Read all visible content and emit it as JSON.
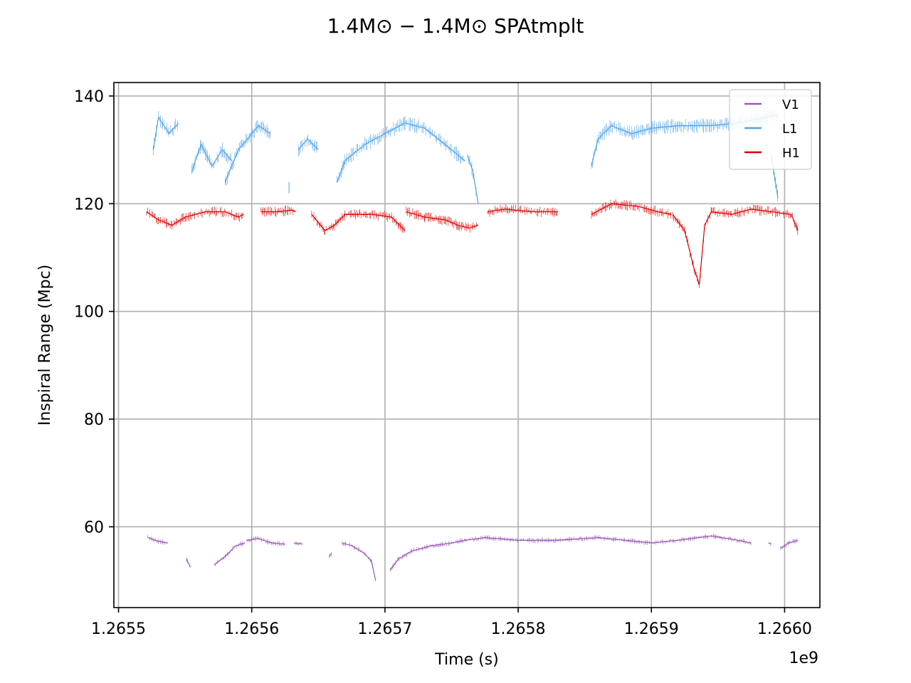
{
  "chart_data": {
    "type": "line",
    "title": "1.4M⊙ − 1.4M⊙ SPAtmplt",
    "xlabel": "Time (s)",
    "ylabel": "Inspiral Range (Mpc)",
    "x_offset_label": "1e9",
    "xlim": [
      1265496500,
      1266026500
    ],
    "ylim": [
      45,
      142.5
    ],
    "x_ticks": [
      1265500000,
      1265600000,
      1265700000,
      1265800000,
      1265900000,
      1266000000
    ],
    "x_tick_labels": [
      "1.2655",
      "1.2656",
      "1.2657",
      "1.2658",
      "1.2659",
      "1.2660"
    ],
    "y_ticks": [
      60,
      80,
      100,
      120,
      140
    ],
    "y_tick_labels": [
      "60",
      "80",
      "100",
      "120",
      "140"
    ],
    "grid": true,
    "legend": "top-right",
    "series": [
      {
        "name": "V1",
        "color": "#9b59b6",
        "segments": [
          [
            [
              1265522000,
              58
            ],
            [
              1265530000,
              57.3
            ],
            [
              1265537000,
              57
            ]
          ],
          [
            [
              1265551000,
              54
            ],
            [
              1265554000,
              52.5
            ]
          ],
          [
            [
              1265572000,
              53
            ],
            [
              1265580000,
              54.5
            ],
            [
              1265588000,
              56.5
            ],
            [
              1265595000,
              57
            ]
          ],
          [
            [
              1265596000,
              57.5
            ],
            [
              1265605000,
              57.8
            ],
            [
              1265615000,
              57
            ],
            [
              1265625000,
              56.8
            ]
          ],
          [
            [
              1265632000,
              57
            ],
            [
              1265638000,
              56.8
            ]
          ],
          [
            [
              1265658000,
              54.5
            ],
            [
              1265660000,
              55
            ]
          ],
          [
            [
              1265668000,
              57
            ],
            [
              1265675000,
              56.5
            ],
            [
              1265685000,
              55
            ],
            [
              1265690000,
              53.5
            ],
            [
              1265693000,
              50
            ]
          ],
          [
            [
              1265704000,
              52
            ],
            [
              1265710000,
              54
            ],
            [
              1265720000,
              55.5
            ],
            [
              1265735000,
              56.5
            ],
            [
              1265750000,
              57
            ],
            [
              1265760000,
              57.5
            ],
            [
              1265775000,
              58
            ],
            [
              1265800000,
              57.5
            ],
            [
              1265830000,
              57.5
            ],
            [
              1265860000,
              58
            ],
            [
              1265880000,
              57.5
            ],
            [
              1265900000,
              57
            ],
            [
              1265920000,
              57.5
            ],
            [
              1265945000,
              58.3
            ],
            [
              1265965000,
              57.5
            ],
            [
              1265975000,
              57
            ]
          ],
          [
            [
              1265988000,
              57
            ],
            [
              1265990000,
              56.8
            ]
          ],
          [
            [
              1265997000,
              56
            ],
            [
              1266003000,
              57
            ],
            [
              1266010000,
              57.5
            ]
          ]
        ]
      },
      {
        "name": "L1",
        "color": "#4fa3e8",
        "segments": [
          [
            [
              1265526000,
              130
            ],
            [
              1265530000,
              136
            ],
            [
              1265538000,
              133
            ],
            [
              1265545000,
              135
            ]
          ],
          [
            [
              1265555000,
              126
            ],
            [
              1265562000,
              131
            ],
            [
              1265570000,
              127
            ],
            [
              1265578000,
              130
            ],
            [
              1265585000,
              128
            ]
          ],
          [
            [
              1265580000,
              124
            ],
            [
              1265590000,
              130
            ],
            [
              1265605000,
              134.5
            ],
            [
              1265614000,
              133
            ]
          ],
          [
            [
              1265628000,
              123
            ]
          ],
          [
            [
              1265635000,
              130
            ],
            [
              1265642000,
              132
            ],
            [
              1265650000,
              130
            ]
          ],
          [
            [
              1265664000,
              124
            ],
            [
              1265670000,
              128
            ],
            [
              1265685000,
              131
            ],
            [
              1265700000,
              133
            ],
            [
              1265715000,
              135
            ],
            [
              1265730000,
              134
            ],
            [
              1265745000,
              131
            ],
            [
              1265760000,
              128
            ]
          ],
          [
            [
              1265762000,
              129
            ],
            [
              1265766000,
              126
            ],
            [
              1265770000,
              120
            ]
          ],
          [
            [
              1265855000,
              127
            ],
            [
              1265860000,
              132
            ],
            [
              1265870000,
              134.5
            ],
            [
              1265885000,
              133
            ],
            [
              1265900000,
              134
            ],
            [
              1265920000,
              134.5
            ],
            [
              1265945000,
              134.5
            ],
            [
              1265965000,
              135
            ],
            [
              1265985000,
              136
            ],
            [
              1265995000,
              136.5
            ]
          ],
          [
            [
              1265990000,
              129
            ],
            [
              1265995000,
              121
            ]
          ]
        ]
      },
      {
        "name": "H1",
        "color": "#dd0000",
        "segments": [
          [
            [
              1265521000,
              118.5
            ],
            [
              1265530000,
              117
            ],
            [
              1265540000,
              116
            ],
            [
              1265550000,
              117.5
            ],
            [
              1265565000,
              118.5
            ],
            [
              1265580000,
              118.5
            ],
            [
              1265590000,
              117.5
            ],
            [
              1265594000,
              118
            ]
          ],
          [
            [
              1265607000,
              118.5
            ],
            [
              1265620000,
              118.5
            ],
            [
              1265630000,
              118.8
            ],
            [
              1265633000,
              118.5
            ]
          ],
          [
            [
              1265645000,
              118
            ],
            [
              1265655000,
              115
            ],
            [
              1265662000,
              116
            ],
            [
              1265670000,
              118
            ],
            [
              1265690000,
              118
            ],
            [
              1265705000,
              117.5
            ],
            [
              1265715000,
              115
            ]
          ],
          [
            [
              1265716000,
              118.5
            ],
            [
              1265730000,
              117.5
            ],
            [
              1265745000,
              117
            ],
            [
              1265755000,
              116
            ],
            [
              1265763000,
              115.5
            ],
            [
              1265770000,
              116
            ]
          ],
          [
            [
              1265777000,
              118.5
            ],
            [
              1265790000,
              119
            ],
            [
              1265810000,
              118.5
            ],
            [
              1265830000,
              118.5
            ]
          ],
          [
            [
              1265855000,
              118
            ],
            [
              1265870000,
              120
            ],
            [
              1265890000,
              119.5
            ],
            [
              1265905000,
              118.5
            ],
            [
              1265915000,
              118
            ]
          ],
          [
            [
              1265916000,
              118
            ],
            [
              1265925000,
              115
            ],
            [
              1265932000,
              108
            ],
            [
              1265936000,
              105
            ],
            [
              1265940000,
              116
            ],
            [
              1265945000,
              118.5
            ],
            [
              1265960000,
              118
            ],
            [
              1265975000,
              119
            ],
            [
              1265990000,
              118.5
            ],
            [
              1266005000,
              118
            ],
            [
              1266010000,
              115
            ]
          ]
        ]
      }
    ]
  }
}
